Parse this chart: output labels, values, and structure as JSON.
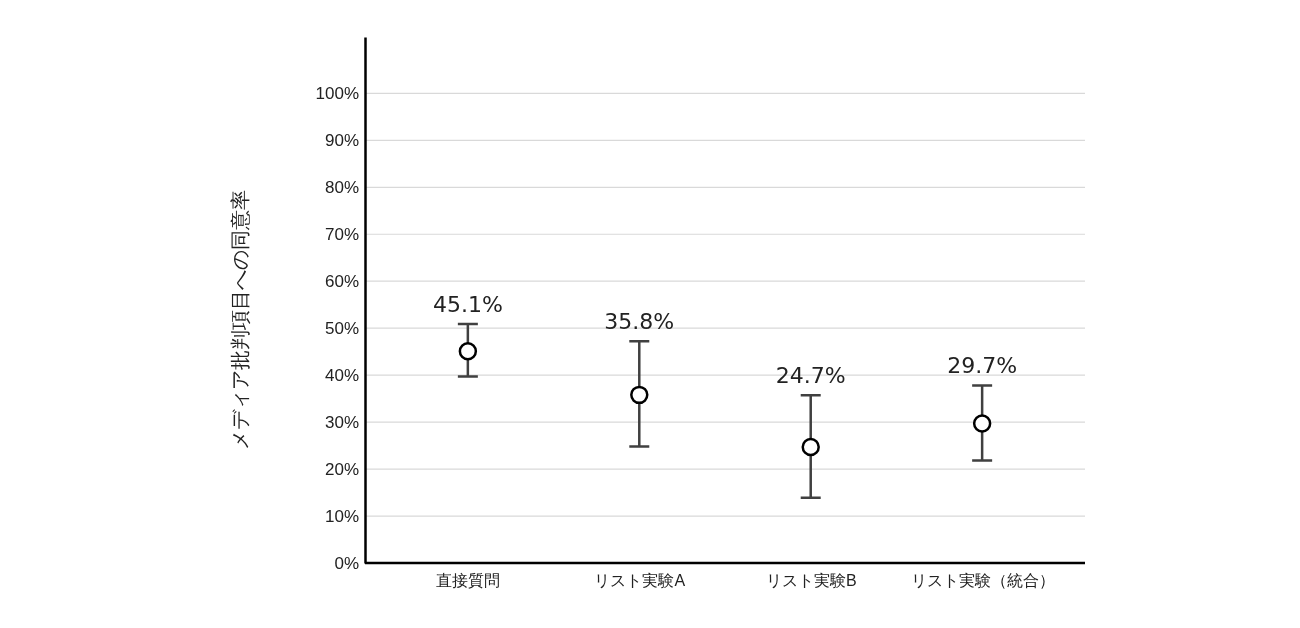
{
  "chart_data": {
    "type": "scatter",
    "ylabel": "メディア批判項目への同意率",
    "categories": [
      "直接質問",
      "リスト実験A",
      "リスト実験B",
      "リスト実験（統合）"
    ],
    "values": [
      45.1,
      35.8,
      24.7,
      29.7
    ],
    "errors": [
      [
        39.7,
        50.9
      ],
      [
        24.8,
        47.2
      ],
      [
        13.9,
        35.7
      ],
      [
        21.8,
        37.8
      ]
    ],
    "value_labels": [
      "45.1%",
      "35.8%",
      "24.7%",
      "29.7%"
    ],
    "color": "#000000",
    "marker": "circle",
    "grid": "y",
    "ylim": [
      0,
      112
    ],
    "yticks": [
      {
        "value": 0,
        "label": "0%"
      },
      {
        "value": 10,
        "label": "10%"
      },
      {
        "value": 20,
        "label": "20%"
      },
      {
        "value": 30,
        "label": "30%"
      },
      {
        "value": 40,
        "label": "40%"
      },
      {
        "value": 50,
        "label": "50%"
      },
      {
        "value": 60,
        "label": "60%"
      },
      {
        "value": 70,
        "label": "70%"
      },
      {
        "value": 80,
        "label": "80%"
      },
      {
        "value": 90,
        "label": "90%"
      },
      {
        "value": 100,
        "label": "100%"
      }
    ]
  }
}
